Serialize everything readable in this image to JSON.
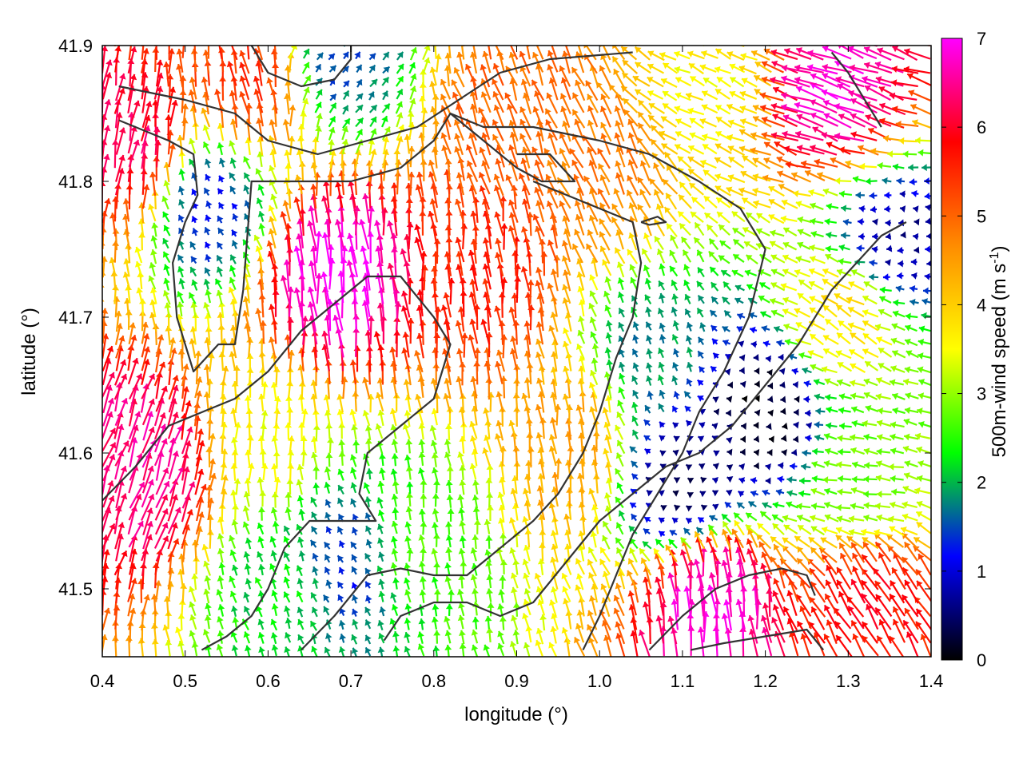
{
  "chart_data": {
    "type": "quiver",
    "title": "",
    "xlabel": "longitude (°)",
    "ylabel": "latitude (°)",
    "xlim": [
      0.4,
      1.4
    ],
    "ylim": [
      41.45,
      41.9
    ],
    "x_ticks": [
      "0.4",
      "0.5",
      "0.6",
      "0.7",
      "0.8",
      "0.9",
      "1.0",
      "1.1",
      "1.2",
      "1.3",
      "1.4"
    ],
    "y_ticks": [
      "41.5",
      "41.6",
      "41.7",
      "41.8",
      "41.9"
    ],
    "grid": false,
    "colorbar": {
      "label": "500m-wind speed (m s",
      "label_superscript": "-1",
      "label_suffix": ")",
      "range": [
        0,
        7
      ],
      "ticks": [
        "0",
        "1",
        "2",
        "3",
        "4",
        "5",
        "6",
        "7"
      ],
      "stops": [
        "#000000",
        "#0000ff",
        "#00ff00",
        "#ffff00",
        "#ff8c00",
        "#ff0000",
        "#ff00ff"
      ]
    },
    "wind_regions": [
      {
        "lon": 0.68,
        "lat": 41.72,
        "speed": 7.0,
        "dir_deg": 95
      },
      {
        "lon": 0.44,
        "lat": 41.82,
        "speed": 6.2,
        "dir_deg": 80
      },
      {
        "lon": 0.45,
        "lat": 41.58,
        "speed": 6.5,
        "dir_deg": 70
      },
      {
        "lon": 0.58,
        "lat": 41.87,
        "speed": 5.5,
        "dir_deg": 100
      },
      {
        "lon": 0.87,
        "lat": 41.72,
        "speed": 5.6,
        "dir_deg": 95
      },
      {
        "lon": 0.9,
        "lat": 41.85,
        "speed": 5.0,
        "dir_deg": 110
      },
      {
        "lon": 1.0,
        "lat": 41.8,
        "speed": 4.8,
        "dir_deg": 115
      },
      {
        "lon": 0.97,
        "lat": 41.6,
        "speed": 4.5,
        "dir_deg": 95
      },
      {
        "lon": 0.6,
        "lat": 41.6,
        "speed": 3.5,
        "dir_deg": 90
      },
      {
        "lon": 0.62,
        "lat": 41.5,
        "speed": 2.2,
        "dir_deg": 110
      },
      {
        "lon": 0.78,
        "lat": 41.53,
        "speed": 2.6,
        "dir_deg": 95
      },
      {
        "lon": 1.1,
        "lat": 41.58,
        "speed": 0.4,
        "dir_deg": 150
      },
      {
        "lon": 1.2,
        "lat": 41.63,
        "speed": 0.1,
        "dir_deg": 180
      },
      {
        "lon": 1.07,
        "lat": 41.67,
        "speed": 1.8,
        "dir_deg": 110
      },
      {
        "lon": 1.14,
        "lat": 41.87,
        "speed": 3.6,
        "dir_deg": 155
      },
      {
        "lon": 1.3,
        "lat": 41.86,
        "speed": 6.8,
        "dir_deg": 160
      },
      {
        "lon": 1.3,
        "lat": 41.7,
        "speed": 3.8,
        "dir_deg": 150
      },
      {
        "lon": 1.32,
        "lat": 41.58,
        "speed": 2.8,
        "dir_deg": 170
      },
      {
        "lon": 1.33,
        "lat": 41.48,
        "speed": 5.8,
        "dir_deg": 120
      },
      {
        "lon": 1.14,
        "lat": 41.48,
        "speed": 6.8,
        "dir_deg": 95
      },
      {
        "lon": 1.36,
        "lat": 41.76,
        "speed": 0.7,
        "dir_deg": 180
      },
      {
        "lon": 0.53,
        "lat": 41.78,
        "speed": 1.2,
        "dir_deg": 120
      },
      {
        "lon": 0.68,
        "lat": 41.89,
        "speed": 1.5,
        "dir_deg": 50
      },
      {
        "lon": 0.69,
        "lat": 41.52,
        "speed": 1.3,
        "dir_deg": 120
      }
    ],
    "contours": [
      [
        [
          0.42,
          41.87
        ],
        [
          0.5,
          41.86
        ],
        [
          0.56,
          41.85
        ],
        [
          0.6,
          41.83
        ],
        [
          0.66,
          41.82
        ],
        [
          0.72,
          41.83
        ],
        [
          0.78,
          41.84
        ],
        [
          0.83,
          41.86
        ],
        [
          0.88,
          41.88
        ],
        [
          0.94,
          41.89
        ],
        [
          1.04,
          41.895
        ]
      ],
      [
        [
          0.42,
          41.845
        ],
        [
          0.48,
          41.83
        ],
        [
          0.51,
          41.82
        ],
        [
          0.515,
          41.79
        ],
        [
          0.5,
          41.77
        ],
        [
          0.485,
          41.74
        ],
        [
          0.49,
          41.7
        ],
        [
          0.51,
          41.66
        ],
        [
          0.54,
          41.68
        ],
        [
          0.56,
          41.68
        ],
        [
          0.57,
          41.72
        ],
        [
          0.575,
          41.76
        ],
        [
          0.58,
          41.8
        ],
        [
          0.64,
          41.8
        ],
        [
          0.7,
          41.8
        ],
        [
          0.76,
          41.81
        ],
        [
          0.8,
          41.83
        ],
        [
          0.82,
          41.85
        ],
        [
          0.86,
          41.83
        ],
        [
          0.9,
          41.81
        ],
        [
          0.93,
          41.8
        ],
        [
          0.97,
          41.8
        ],
        [
          0.94,
          41.82
        ],
        [
          0.9,
          41.82
        ]
      ],
      [
        [
          0.82,
          41.85
        ],
        [
          0.86,
          41.84
        ],
        [
          0.92,
          41.84
        ],
        [
          1.0,
          41.83
        ],
        [
          1.06,
          41.82
        ],
        [
          1.12,
          41.8
        ],
        [
          1.17,
          41.78
        ],
        [
          1.2,
          41.75
        ],
        [
          1.18,
          41.7
        ],
        [
          1.15,
          41.66
        ],
        [
          1.12,
          41.63
        ],
        [
          1.1,
          41.6
        ],
        [
          1.07,
          41.57
        ],
        [
          1.04,
          41.54
        ],
        [
          1.02,
          41.51
        ],
        [
          1.0,
          41.48
        ],
        [
          0.98,
          41.455
        ]
      ],
      [
        [
          0.4,
          41.565
        ],
        [
          0.44,
          41.59
        ],
        [
          0.48,
          41.62
        ],
        [
          0.52,
          41.63
        ],
        [
          0.56,
          41.64
        ],
        [
          0.6,
          41.66
        ],
        [
          0.64,
          41.69
        ],
        [
          0.68,
          41.71
        ],
        [
          0.72,
          41.73
        ],
        [
          0.76,
          41.73
        ],
        [
          0.8,
          41.7
        ],
        [
          0.82,
          41.68
        ],
        [
          0.8,
          41.64
        ],
        [
          0.76,
          41.62
        ],
        [
          0.72,
          41.6
        ],
        [
          0.71,
          41.57
        ],
        [
          0.73,
          41.55
        ],
        [
          0.69,
          41.55
        ],
        [
          0.65,
          41.55
        ],
        [
          0.62,
          41.53
        ],
        [
          0.6,
          41.5
        ],
        [
          0.58,
          41.48
        ],
        [
          0.55,
          41.465
        ],
        [
          0.52,
          41.455
        ]
      ],
      [
        [
          0.64,
          41.455
        ],
        [
          0.68,
          41.48
        ],
        [
          0.72,
          41.51
        ],
        [
          0.76,
          41.515
        ],
        [
          0.8,
          41.51
        ],
        [
          0.84,
          41.51
        ],
        [
          0.88,
          41.53
        ],
        [
          0.92,
          41.55
        ],
        [
          0.95,
          41.57
        ],
        [
          0.98,
          41.6
        ],
        [
          1.0,
          41.63
        ],
        [
          1.02,
          41.67
        ],
        [
          1.04,
          41.7
        ],
        [
          1.05,
          41.74
        ],
        [
          1.04,
          41.77
        ],
        [
          1.0,
          41.78
        ],
        [
          0.96,
          41.79
        ],
        [
          0.92,
          41.8
        ]
      ],
      [
        [
          0.74,
          41.462
        ],
        [
          0.76,
          41.48
        ],
        [
          0.8,
          41.49
        ],
        [
          0.84,
          41.49
        ],
        [
          0.88,
          41.48
        ],
        [
          0.92,
          41.49
        ],
        [
          0.96,
          41.52
        ],
        [
          1.0,
          41.55
        ],
        [
          1.04,
          41.57
        ],
        [
          1.08,
          41.59
        ],
        [
          1.12,
          41.6
        ],
        [
          1.16,
          41.62
        ],
        [
          1.2,
          41.65
        ],
        [
          1.24,
          41.68
        ],
        [
          1.28,
          41.72
        ],
        [
          1.31,
          41.74
        ],
        [
          1.34,
          41.76
        ],
        [
          1.37,
          41.77
        ]
      ],
      [
        [
          1.06,
          41.455
        ],
        [
          1.1,
          41.48
        ],
        [
          1.14,
          41.5
        ],
        [
          1.18,
          41.51
        ],
        [
          1.22,
          41.515
        ],
        [
          1.25,
          41.51
        ],
        [
          1.26,
          41.495
        ]
      ],
      [
        [
          1.11,
          41.455
        ],
        [
          1.15,
          41.46
        ],
        [
          1.2,
          41.465
        ],
        [
          1.25,
          41.47
        ],
        [
          1.27,
          41.455
        ]
      ],
      [
        [
          1.05,
          41.77
        ],
        [
          1.06,
          41.768
        ],
        [
          1.08,
          41.77
        ],
        [
          1.07,
          41.774
        ],
        [
          1.05,
          41.77
        ]
      ],
      [
        [
          0.58,
          41.9
        ],
        [
          0.6,
          41.88
        ],
        [
          0.64,
          41.87
        ],
        [
          0.68,
          41.875
        ],
        [
          0.7,
          41.89
        ],
        [
          0.7,
          41.9
        ]
      ],
      [
        [
          1.34,
          41.84
        ],
        [
          1.32,
          41.86
        ],
        [
          1.3,
          41.88
        ],
        [
          1.28,
          41.895
        ]
      ]
    ]
  }
}
